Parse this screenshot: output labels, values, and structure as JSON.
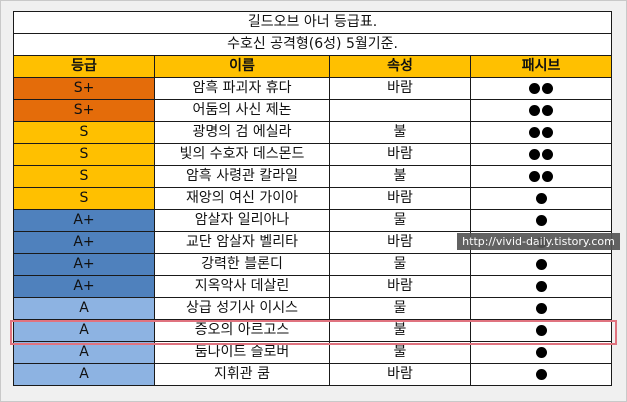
{
  "title": "길드오브 아너 등급표.",
  "subtitle": "수호신 공격형(6성) 5월기준.",
  "headers": [
    "등급",
    "이름",
    "속성",
    "패시브"
  ],
  "rows": [
    {
      "grade": "S+",
      "name": "암흑 파괴자 휴다",
      "attr": "바람",
      "dots": 2,
      "color": "#e46c0a"
    },
    {
      "grade": "S+",
      "name": "어둠의 사신 제논",
      "attr": "",
      "dots": 2,
      "color": "#e46c0a"
    },
    {
      "grade": "S",
      "name": "광명의 검 에실라",
      "attr": "불",
      "dots": 2,
      "color": "#ffc000"
    },
    {
      "grade": "S",
      "name": "빛의 수호자 데스몬드",
      "attr": "바람",
      "dots": 2,
      "color": "#ffc000"
    },
    {
      "grade": "S",
      "name": "암흑 사령관 칼라일",
      "attr": "불",
      "dots": 2,
      "color": "#ffc000"
    },
    {
      "grade": "S",
      "name": "재앙의 여신 가이아",
      "attr": "바람",
      "dots": 1,
      "color": "#ffc000"
    },
    {
      "grade": "A+",
      "name": "암살자 일리아나",
      "attr": "물",
      "dots": 1,
      "color": "#4f81bd"
    },
    {
      "grade": "A+",
      "name": "교단 암살자 벨리타",
      "attr": "바람",
      "dots": 1,
      "color": "#4f81bd"
    },
    {
      "grade": "A+",
      "name": "강력한 블론디",
      "attr": "물",
      "dots": 1,
      "color": "#4f81bd"
    },
    {
      "grade": "A+",
      "name": "지옥악사 데살린",
      "attr": "바람",
      "dots": 1,
      "color": "#4f81bd"
    },
    {
      "grade": "A",
      "name": "상급 성기사 이시스",
      "attr": "물",
      "dots": 1,
      "color": "#8db3e2"
    },
    {
      "grade": "A",
      "name": "증오의 아르고스",
      "attr": "불",
      "dots": 1,
      "color": "#8db3e2"
    },
    {
      "grade": "A",
      "name": "둠나이트 슬로버",
      "attr": "불",
      "dots": 1,
      "color": "#8db3e2"
    },
    {
      "grade": "A",
      "name": "지휘관 쿰",
      "attr": "바람",
      "dots": 1,
      "color": "#8db3e2"
    }
  ],
  "highlighted_row": "증오의 아르고스",
  "watermark": "http://vivid-daily.tistory.com"
}
